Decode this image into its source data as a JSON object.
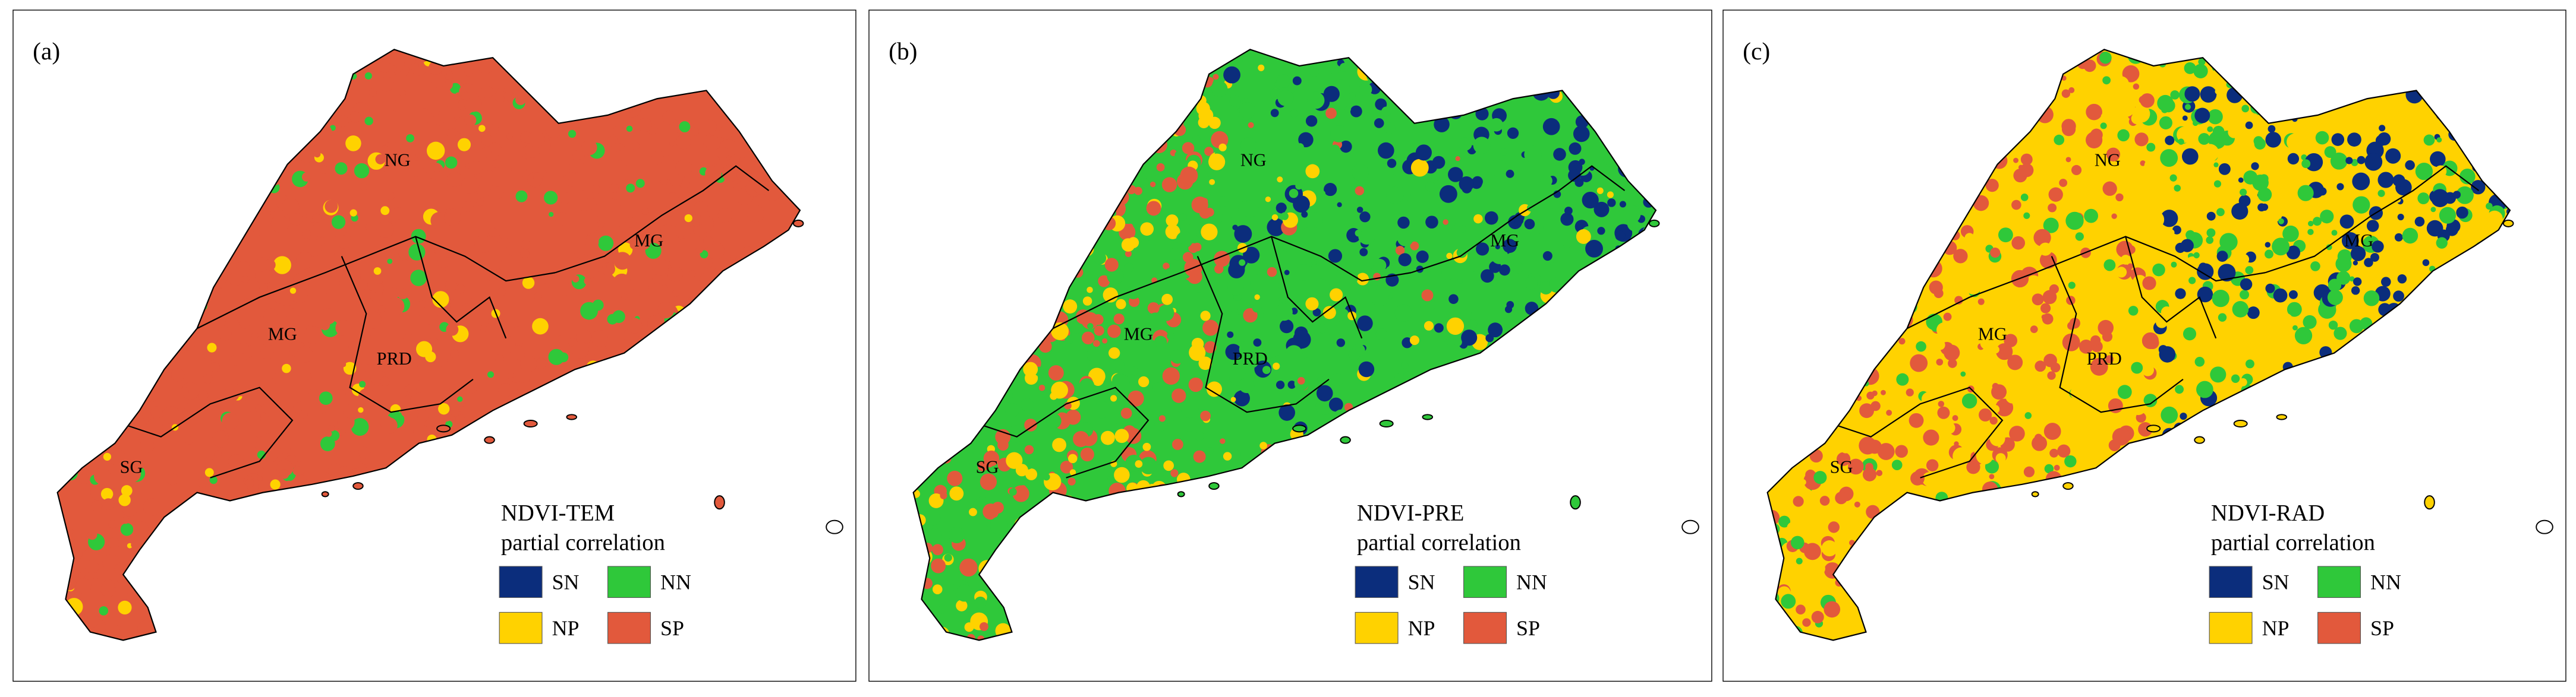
{
  "panels": [
    {
      "label": "(a)",
      "legend_title": [
        "NDVI-TEM",
        "partial correlation"
      ],
      "regions": [
        "NG",
        "MG",
        "MG",
        "PRD",
        "SG"
      ],
      "legend": [
        {
          "label": "SN",
          "color": "#0b2d7c"
        },
        {
          "label": "NN",
          "color": "#2fc83a"
        },
        {
          "label": "NP",
          "color": "#ffd200"
        },
        {
          "label": "SP",
          "color": "#e2593c"
        }
      ]
    },
    {
      "label": "(b)",
      "legend_title": [
        "NDVI-PRE",
        "partial correlation"
      ],
      "regions": [
        "NG",
        "MG",
        "MG",
        "PRD",
        "SG"
      ],
      "legend": [
        {
          "label": "SN",
          "color": "#0b2d7c"
        },
        {
          "label": "NN",
          "color": "#2fc83a"
        },
        {
          "label": "NP",
          "color": "#ffd200"
        },
        {
          "label": "SP",
          "color": "#e2593c"
        }
      ]
    },
    {
      "label": "(c)",
      "legend_title": [
        "NDVI-RAD",
        "partial correlation"
      ],
      "regions": [
        "NG",
        "MG",
        "MG",
        "PRD",
        "SG"
      ],
      "legend": [
        {
          "label": "SN",
          "color": "#0b2d7c"
        },
        {
          "label": "NN",
          "color": "#2fc83a"
        },
        {
          "label": "NP",
          "color": "#ffd200"
        },
        {
          "label": "SP",
          "color": "#e2593c"
        }
      ]
    }
  ]
}
